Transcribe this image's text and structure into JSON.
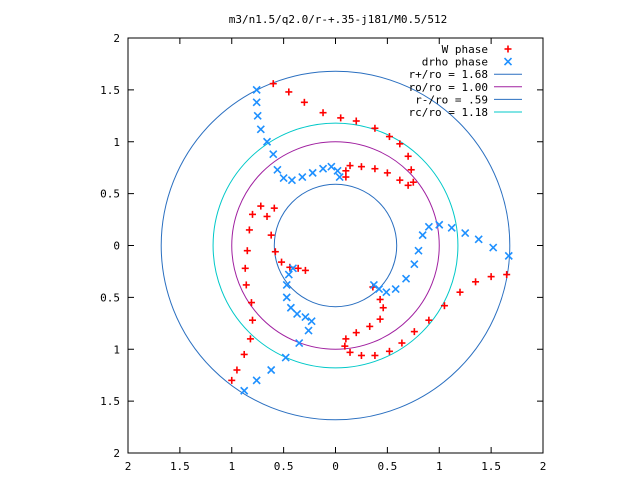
{
  "chart_data": {
    "type": "scatter",
    "title": "m3/n1.5/q2.0/r-+.35-j181/M0.5/512",
    "xlabel": "",
    "ylabel": "",
    "xlim": [
      -2,
      2
    ],
    "ylim": [
      -2,
      2
    ],
    "xtick_labels": [
      "2",
      "1.5",
      "1",
      "0.5",
      "0",
      "0.5",
      "1",
      "1.5",
      "2"
    ],
    "ytick_labels": [
      "2",
      "1.5",
      "1",
      "0.5",
      "0",
      "0.5",
      "1",
      "1.5",
      "2"
    ],
    "grid": false,
    "legend_position": "top-right",
    "point_series": [
      {
        "name": "W phase",
        "marker": "plus",
        "color": "#ff0000",
        "points": [
          [
            -0.6,
            1.56
          ],
          [
            -0.45,
            1.48
          ],
          [
            -0.3,
            1.38
          ],
          [
            -0.12,
            1.28
          ],
          [
            0.05,
            1.23
          ],
          [
            0.2,
            1.2
          ],
          [
            0.38,
            1.13
          ],
          [
            0.52,
            1.05
          ],
          [
            0.62,
            0.98
          ],
          [
            0.7,
            0.86
          ],
          [
            0.73,
            0.73
          ],
          [
            0.75,
            0.61
          ],
          [
            0.7,
            0.58
          ],
          [
            0.62,
            0.63
          ],
          [
            0.5,
            0.7
          ],
          [
            0.38,
            0.74
          ],
          [
            0.25,
            0.76
          ],
          [
            0.14,
            0.77
          ],
          [
            0.1,
            0.72
          ],
          [
            0.1,
            0.66
          ],
          [
            -0.59,
            0.36
          ],
          [
            -0.72,
            0.38
          ],
          [
            -0.8,
            0.3
          ],
          [
            -0.83,
            0.15
          ],
          [
            -0.85,
            -0.05
          ],
          [
            -0.87,
            -0.22
          ],
          [
            -0.86,
            -0.38
          ],
          [
            -0.81,
            -0.55
          ],
          [
            -0.8,
            -0.72
          ],
          [
            -0.82,
            -0.9
          ],
          [
            -0.88,
            -1.05
          ],
          [
            -0.95,
            -1.2
          ],
          [
            -1.0,
            -1.3
          ],
          [
            -0.66,
            0.28
          ],
          [
            -0.62,
            0.1
          ],
          [
            -0.58,
            -0.06
          ],
          [
            -0.52,
            -0.16
          ],
          [
            -0.44,
            -0.21
          ],
          [
            -0.36,
            -0.22
          ],
          [
            -0.29,
            -0.24
          ],
          [
            1.65,
            -0.28
          ],
          [
            1.5,
            -0.3
          ],
          [
            1.35,
            -0.35
          ],
          [
            1.2,
            -0.45
          ],
          [
            1.05,
            -0.58
          ],
          [
            0.9,
            -0.72
          ],
          [
            0.76,
            -0.83
          ],
          [
            0.64,
            -0.94
          ],
          [
            0.52,
            -1.02
          ],
          [
            0.38,
            -1.06
          ],
          [
            0.25,
            -1.06
          ],
          [
            0.14,
            -1.03
          ],
          [
            0.09,
            -0.97
          ],
          [
            0.1,
            -0.9
          ],
          [
            0.2,
            -0.84
          ],
          [
            0.33,
            -0.78
          ],
          [
            0.43,
            -0.71
          ],
          [
            0.46,
            -0.6
          ],
          [
            0.43,
            -0.52
          ],
          [
            0.36,
            -0.4
          ]
        ]
      },
      {
        "name": "drho phase",
        "marker": "cross",
        "color": "#1e90ff",
        "points": [
          [
            -0.76,
            1.5
          ],
          [
            -0.76,
            1.38
          ],
          [
            -0.75,
            1.25
          ],
          [
            -0.72,
            1.12
          ],
          [
            -0.66,
            1.0
          ],
          [
            -0.6,
            0.88
          ],
          [
            -0.56,
            0.73
          ],
          [
            -0.5,
            0.65
          ],
          [
            -0.42,
            0.63
          ],
          [
            -0.32,
            0.66
          ],
          [
            -0.22,
            0.7
          ],
          [
            -0.12,
            0.74
          ],
          [
            -0.04,
            0.76
          ],
          [
            0.02,
            0.72
          ],
          [
            0.04,
            0.66
          ],
          [
            -0.88,
            -1.4
          ],
          [
            -0.76,
            -1.3
          ],
          [
            -0.62,
            -1.2
          ],
          [
            -0.48,
            -1.08
          ],
          [
            -0.35,
            -0.94
          ],
          [
            -0.26,
            -0.82
          ],
          [
            -0.23,
            -0.73
          ],
          [
            -0.29,
            -0.69
          ],
          [
            -0.37,
            -0.66
          ],
          [
            -0.43,
            -0.6
          ],
          [
            -0.47,
            -0.5
          ],
          [
            -0.47,
            -0.38
          ],
          [
            -0.45,
            -0.28
          ],
          [
            -0.41,
            -0.22
          ],
          [
            1.67,
            -0.1
          ],
          [
            1.52,
            -0.02
          ],
          [
            1.38,
            0.06
          ],
          [
            1.25,
            0.12
          ],
          [
            1.12,
            0.17
          ],
          [
            1.0,
            0.2
          ],
          [
            0.9,
            0.18
          ],
          [
            0.84,
            0.1
          ],
          [
            0.8,
            -0.05
          ],
          [
            0.76,
            -0.18
          ],
          [
            0.68,
            -0.32
          ],
          [
            0.58,
            -0.42
          ],
          [
            0.49,
            -0.45
          ],
          [
            0.42,
            -0.42
          ],
          [
            0.37,
            -0.38
          ]
        ]
      }
    ],
    "circle_series": [
      {
        "name": "r+/ro = 1.68",
        "radius": 1.68,
        "color": "#2a6fc0"
      },
      {
        "name": "ro/ro = 1.00",
        "radius": 1.0,
        "color": "#a020a0"
      },
      {
        "name": "r-/ro = .59",
        "radius": 0.59,
        "color": "#2a6fc0"
      },
      {
        "name": "rc/ro = 1.18",
        "radius": 1.18,
        "color": "#00c8c8"
      }
    ],
    "legend": [
      {
        "label": "W phase",
        "kind": "plus",
        "color": "#ff0000"
      },
      {
        "label": "drho phase",
        "kind": "cross",
        "color": "#1e90ff"
      },
      {
        "label": "r+/ro = 1.68",
        "kind": "line",
        "color": "#2a6fc0"
      },
      {
        "label": "ro/ro = 1.00",
        "kind": "line",
        "color": "#a020a0"
      },
      {
        "label": "r-/ro = .59",
        "kind": "line",
        "color": "#2a6fc0"
      },
      {
        "label": "rc/ro = 1.18",
        "kind": "line",
        "color": "#00c8c8"
      }
    ]
  }
}
